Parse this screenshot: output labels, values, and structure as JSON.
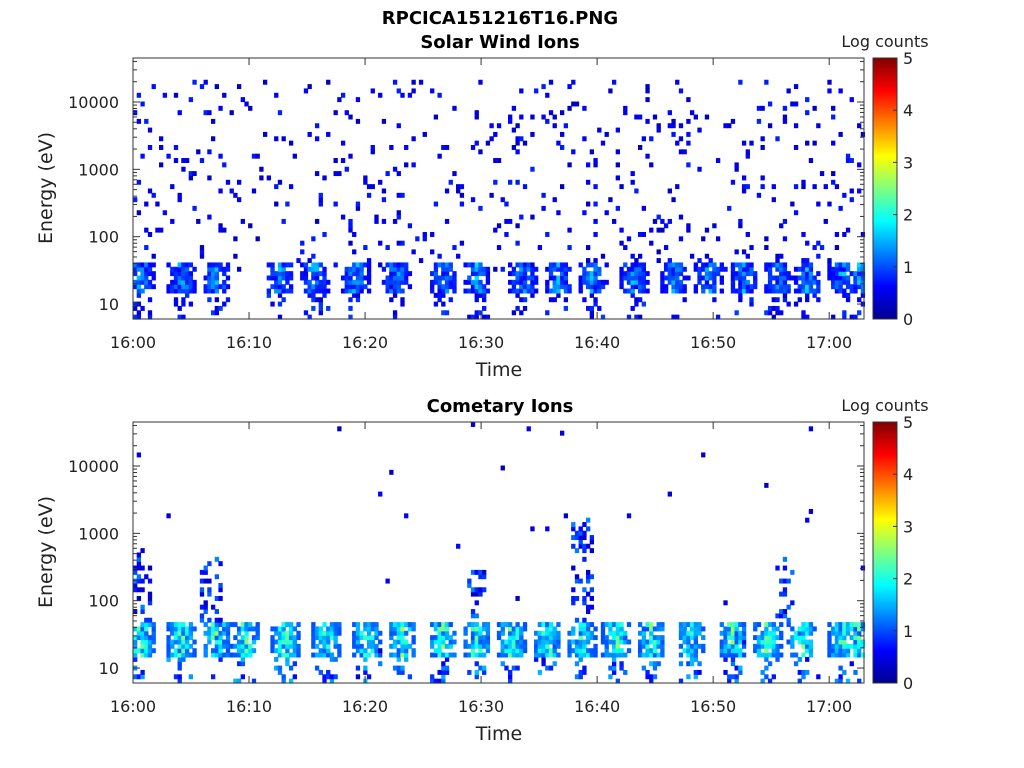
{
  "figure": {
    "title": "RPCICA151216T16.PNG"
  },
  "panels": [
    {
      "title": "Solar Wind Ions",
      "xlabel": "Time",
      "ylabel": "Energy (eV)",
      "colorbar_label": "Log counts"
    },
    {
      "title": "Cometary Ions",
      "xlabel": "Time",
      "ylabel": "Energy (eV)",
      "colorbar_label": "Log counts"
    }
  ],
  "chart_data": [
    {
      "type": "heatmap",
      "title": "Solar Wind Ions",
      "xlabel": "Time",
      "ylabel": "Energy (eV)",
      "x_range": [
        "16:00",
        "17:03"
      ],
      "x_ticks": [
        "16:00",
        "16:10",
        "16:20",
        "16:30",
        "16:40",
        "16:50",
        "17:00"
      ],
      "y_scale": "log",
      "y_range_eV": [
        6,
        45000
      ],
      "y_ticks": [
        10,
        100,
        1000,
        10000
      ],
      "y_tick_labels": [
        "10",
        "100",
        "1000",
        "10000"
      ],
      "colorbar": {
        "label": "Log counts",
        "min": 0,
        "max": 5,
        "ticks": [
          0,
          1,
          2,
          3,
          4,
          5
        ],
        "colormap": "jet"
      },
      "bursts_time_min": [
        0.5,
        4.0,
        7.0,
        12.5,
        15.5,
        19.0,
        22.5,
        26.5,
        29.5,
        33.5,
        36.5,
        39.5,
        43.0,
        46.5,
        49.5,
        52.5,
        55.5,
        58.0,
        61.0,
        62.3
      ],
      "burst_energy_band_eV": [
        15,
        40
      ],
      "background_energy_range_eV": [
        30,
        20000
      ],
      "typical_log_counts": {
        "burst": [
          0.6,
          1.8
        ],
        "background": [
          0.3,
          0.8
        ]
      },
      "grid": false
    },
    {
      "type": "heatmap",
      "title": "Cometary Ions",
      "xlabel": "Time",
      "ylabel": "Energy (eV)",
      "x_range": [
        "16:00",
        "17:03"
      ],
      "x_ticks": [
        "16:00",
        "16:10",
        "16:20",
        "16:30",
        "16:40",
        "16:50",
        "17:00"
      ],
      "y_scale": "log",
      "y_range_eV": [
        6,
        45000
      ],
      "y_ticks": [
        10,
        100,
        1000,
        10000
      ],
      "y_tick_labels": [
        "10",
        "100",
        "1000",
        "10000"
      ],
      "colorbar": {
        "label": "Log counts",
        "min": 0,
        "max": 5,
        "ticks": [
          0,
          1,
          2,
          3,
          4,
          5
        ],
        "colormap": "jet"
      },
      "bursts_time_min": [
        0.5,
        4.0,
        7.0,
        9.5,
        13.0,
        16.5,
        20.0,
        23.0,
        26.5,
        29.5,
        32.5,
        35.5,
        38.5,
        41.5,
        44.5,
        48.0,
        51.5,
        54.5,
        57.5,
        61.0,
        62.3
      ],
      "burst_energy_band_eV": [
        15,
        45
      ],
      "plume_events": [
        {
          "time_min": 0.5,
          "max_energy_eV": 700
        },
        {
          "time_min": 6.5,
          "max_energy_eV": 450
        },
        {
          "time_min": 29.5,
          "max_energy_eV": 300
        },
        {
          "time_min": 38.5,
          "max_energy_eV": 1800
        },
        {
          "time_min": 56.0,
          "max_energy_eV": 450
        }
      ],
      "typical_log_counts": {
        "burst": [
          1.0,
          2.8
        ],
        "peak": 3.5
      },
      "grid": false
    }
  ]
}
